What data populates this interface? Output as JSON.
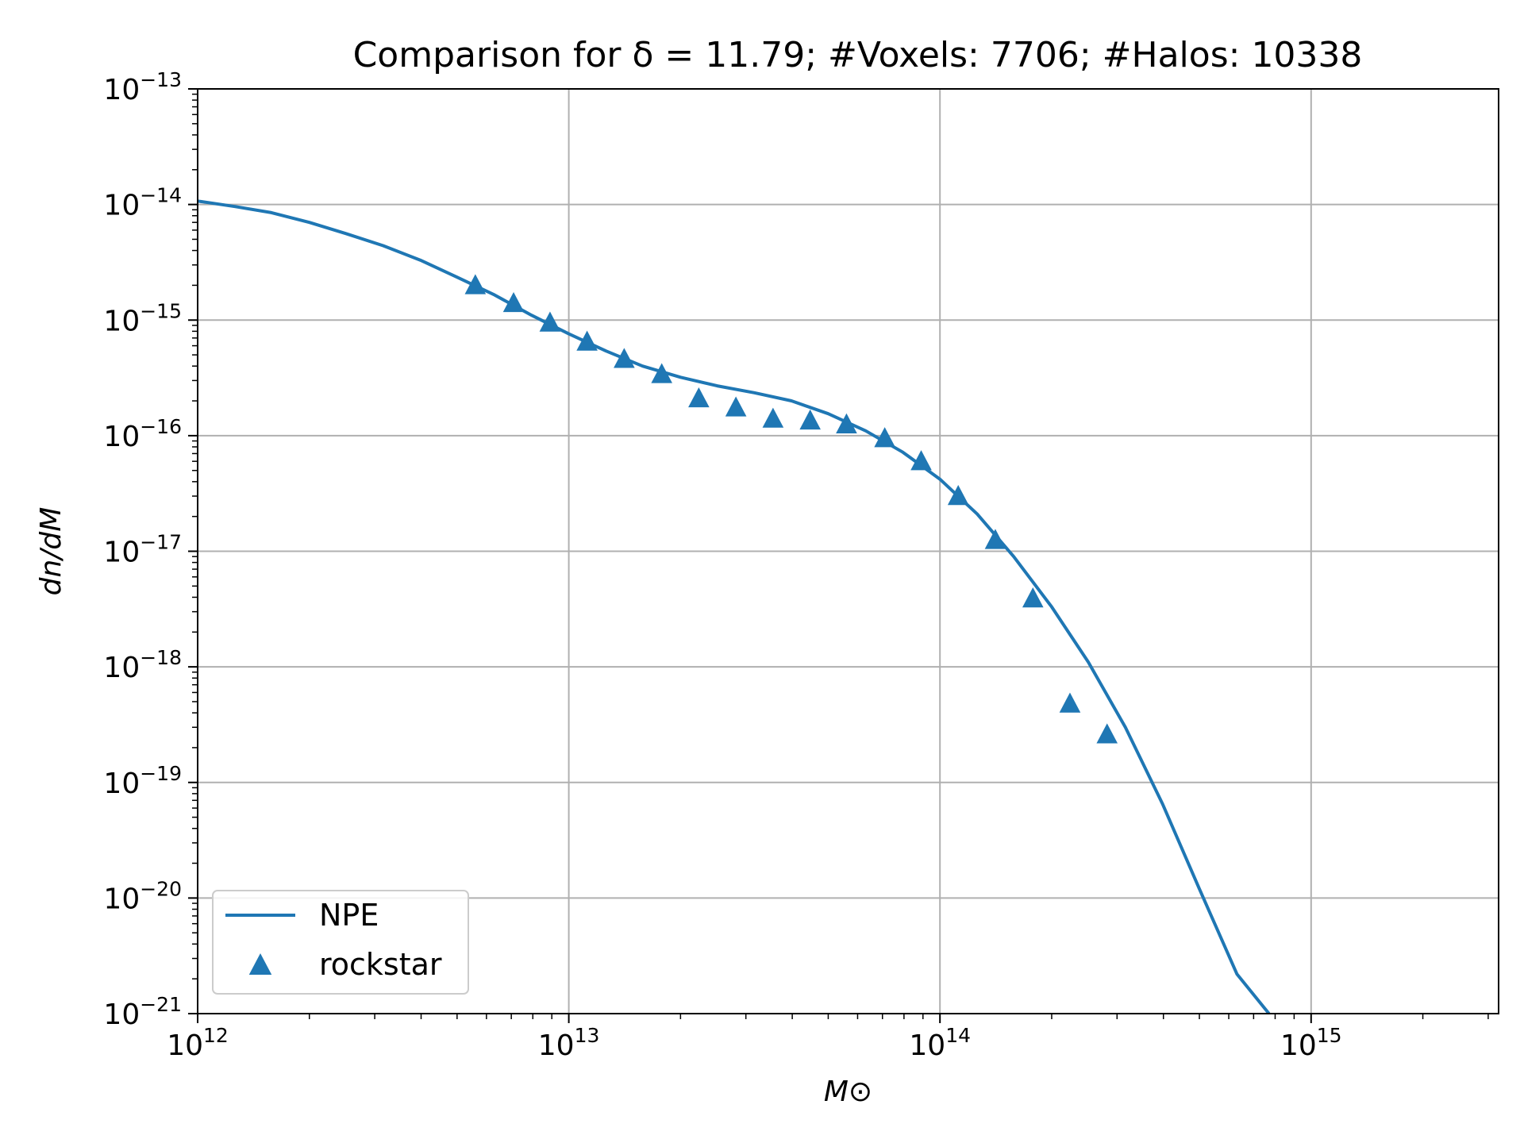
{
  "chart_data": {
    "type": "line",
    "title": "Comparison for δ = 11.79; #Voxels: 7706; #Halos: 10338",
    "xlabel": "M⊙",
    "ylabel": "dn/dM",
    "xscale": "log",
    "yscale": "log",
    "xlim": [
      1000000000000.0,
      3200000000000000.0
    ],
    "ylim": [
      1e-21,
      1e-13
    ],
    "grid": true,
    "legend_position": "lower-left",
    "x_ticks": [
      {
        "value": 1000000000000.0,
        "base": "10",
        "exp": "12"
      },
      {
        "value": 10000000000000.0,
        "base": "10",
        "exp": "13"
      },
      {
        "value": 100000000000000.0,
        "base": "10",
        "exp": "14"
      },
      {
        "value": 1000000000000000.0,
        "base": "10",
        "exp": "15"
      }
    ],
    "y_ticks": [
      {
        "value": 1e-13,
        "base": "10",
        "exp": "−13"
      },
      {
        "value": 1e-14,
        "base": "10",
        "exp": "−14"
      },
      {
        "value": 1e-15,
        "base": "10",
        "exp": "−15"
      },
      {
        "value": 1e-16,
        "base": "10",
        "exp": "−16"
      },
      {
        "value": 1e-17,
        "base": "10",
        "exp": "−17"
      },
      {
        "value": 1e-18,
        "base": "10",
        "exp": "−18"
      },
      {
        "value": 1e-19,
        "base": "10",
        "exp": "−19"
      },
      {
        "value": 1e-20,
        "base": "10",
        "exp": "−20"
      },
      {
        "value": 1e-21,
        "base": "10",
        "exp": "−21"
      }
    ],
    "series": [
      {
        "name": "NPE",
        "style": "line",
        "color": "#1f77b4",
        "points": [
          [
            1000000000000.0,
            1.07e-14
          ],
          [
            1260000000000.0,
            9.6e-15
          ],
          [
            1580000000000.0,
            8.5e-15
          ],
          [
            2000000000000.0,
            7e-15
          ],
          [
            2510000000000.0,
            5.6e-15
          ],
          [
            3160000000000.0,
            4.4e-15
          ],
          [
            3980000000000.0,
            3.3e-15
          ],
          [
            5000000000000.0,
            2.35e-15
          ],
          [
            6310000000000.0,
            1.65e-15
          ],
          [
            7940000000000.0,
            1.1e-15
          ],
          [
            10000000000000.0,
            7.6e-16
          ],
          [
            12600000000000.0,
            5.4e-16
          ],
          [
            15800000000000.0,
            4e-16
          ],
          [
            20000000000000.0,
            3.2e-16
          ],
          [
            25100000000000.0,
            2.7e-16
          ],
          [
            31600000000000.0,
            2.35e-16
          ],
          [
            39800000000000.0,
            2e-16
          ],
          [
            50000000000000.0,
            1.55e-16
          ],
          [
            63100000000000.0,
            1.1e-16
          ],
          [
            79400000000000.0,
            7.2e-17
          ],
          [
            100000000000000.0,
            4.2e-17
          ],
          [
            126000000000000.0,
            2.1e-17
          ],
          [
            158000000000000.0,
            9e-18
          ],
          [
            200000000000000.0,
            3.3e-18
          ],
          [
            251000000000000.0,
            1.1e-18
          ],
          [
            316000000000000.0,
            3e-19
          ],
          [
            398000000000000.0,
            6.5e-20
          ],
          [
            500000000000000.0,
            1.2e-20
          ],
          [
            631000000000000.0,
            2.2e-21
          ],
          [
            770000000000000.0,
            1e-21
          ]
        ]
      },
      {
        "name": "rockstar",
        "style": "triangle-markers",
        "color": "#1f77b4",
        "points": [
          [
            5600000000000.0,
            2e-15
          ],
          [
            7100000000000.0,
            1.4e-15
          ],
          [
            8900000000000.0,
            9.5e-16
          ],
          [
            11200000000000.0,
            6.5e-16
          ],
          [
            14100000000000.0,
            4.6e-16
          ],
          [
            17800000000000.0,
            3.4e-16
          ],
          [
            22400000000000.0,
            2.1e-16
          ],
          [
            28200000000000.0,
            1.75e-16
          ],
          [
            35500000000000.0,
            1.4e-16
          ],
          [
            44700000000000.0,
            1.35e-16
          ],
          [
            56000000000000.0,
            1.25e-16
          ],
          [
            71000000000000.0,
            9.5e-17
          ],
          [
            89000000000000.0,
            6e-17
          ],
          [
            112000000000000.0,
            3e-17
          ],
          [
            141000000000000.0,
            1.25e-17
          ],
          [
            178000000000000.0,
            3.9e-18
          ],
          [
            224000000000000.0,
            4.8e-19
          ],
          [
            282000000000000.0,
            2.6e-19
          ]
        ]
      }
    ]
  }
}
